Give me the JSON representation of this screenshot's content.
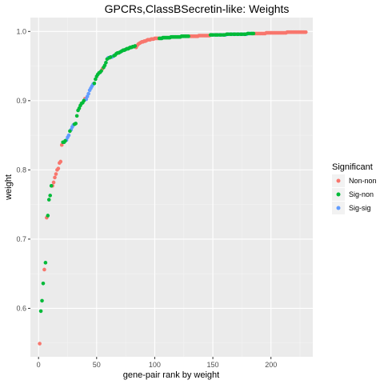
{
  "chart_data": {
    "type": "scatter",
    "title": "GPCRs,ClassBSecretin-like: Weights",
    "xlabel": "gene-pair rank by weight",
    "ylabel": "weight",
    "xlim": [
      -7,
      236
    ],
    "ylim": [
      0.53,
      1.02
    ],
    "x_ticks": [
      0,
      50,
      100,
      150,
      200
    ],
    "x_tick_labels": [
      "0",
      "50",
      "100",
      "150",
      "200"
    ],
    "y_ticks": [
      0.6,
      0.7,
      0.8,
      0.9,
      1.0
    ],
    "y_tick_labels": [
      "0.6",
      "0.7",
      "0.8",
      "0.9",
      "1.0"
    ],
    "grid": true,
    "legend": {
      "title": "Significant",
      "position": "right",
      "entries": [
        {
          "label": "Non-non",
          "color": "#F8766D"
        },
        {
          "label": "Sig-non",
          "color": "#00BA38"
        },
        {
          "label": "Sig-sig",
          "color": "#619CFF"
        }
      ]
    },
    "series": [
      {
        "name": "Non-non",
        "color": "#F8766D",
        "x": [
          1,
          5,
          7,
          12,
          13,
          14,
          15,
          16,
          17,
          18,
          19,
          20,
          40,
          55,
          84,
          85,
          86,
          87,
          88,
          89,
          90,
          91,
          92,
          93,
          94,
          95,
          96,
          97,
          98,
          99,
          100,
          101,
          102,
          103,
          130,
          131,
          132,
          133,
          134,
          135,
          136,
          137,
          138,
          139,
          140,
          141,
          142,
          143,
          144,
          145,
          146,
          147,
          186,
          187,
          188,
          189,
          190,
          191,
          192,
          193,
          194,
          195,
          196,
          197,
          198,
          199,
          200,
          201,
          202,
          203,
          204,
          205,
          206,
          207,
          208,
          209,
          210,
          211,
          212,
          213,
          214,
          215,
          216,
          217,
          218,
          219,
          220,
          221,
          222,
          223,
          224,
          225,
          226,
          227,
          228,
          229,
          230
        ],
        "y": [
          0.549,
          0.656,
          0.731,
          0.777,
          0.782,
          0.789,
          0.794,
          0.8,
          0.802,
          0.81,
          0.812,
          0.836,
          0.903,
          0.946,
          0.977,
          0.98,
          0.982,
          0.983,
          0.984,
          0.985,
          0.985,
          0.986,
          0.986,
          0.987,
          0.988,
          0.988,
          0.988,
          0.989,
          0.989,
          0.989,
          0.99,
          0.99,
          0.99,
          0.99,
          0.993,
          0.993,
          0.993,
          0.993,
          0.993,
          0.993,
          0.993,
          0.993,
          0.994,
          0.994,
          0.994,
          0.994,
          0.994,
          0.994,
          0.994,
          0.994,
          0.994,
          0.994,
          0.997,
          0.997,
          0.997,
          0.997,
          0.997,
          0.997,
          0.997,
          0.997,
          0.997,
          0.997,
          0.998,
          0.998,
          0.998,
          0.998,
          0.998,
          0.998,
          0.998,
          0.998,
          0.998,
          0.998,
          0.998,
          0.998,
          0.998,
          0.998,
          0.998,
          0.998,
          0.998,
          0.998,
          0.999,
          0.999,
          0.999,
          0.999,
          0.999,
          0.999,
          0.999,
          0.999,
          0.999,
          0.999,
          0.999,
          0.999,
          0.999,
          0.999,
          0.999,
          0.999,
          0.999
        ]
      },
      {
        "name": "Sig-non",
        "color": "#00BA38",
        "x": [
          2,
          3,
          4,
          6,
          8,
          9,
          10,
          11,
          21,
          22,
          23,
          27,
          31,
          32,
          33,
          34,
          35,
          36,
          37,
          38,
          39,
          48,
          49,
          50,
          51,
          52,
          53,
          54,
          56,
          57,
          58,
          59,
          61,
          62,
          65,
          66,
          67,
          68,
          69,
          70,
          71,
          72,
          73,
          74,
          75,
          76,
          77,
          78,
          79,
          80,
          81,
          82,
          83,
          104,
          105,
          106,
          107,
          108,
          109,
          110,
          111,
          112,
          113,
          114,
          115,
          116,
          117,
          118,
          119,
          120,
          121,
          122,
          123,
          124,
          125,
          126,
          127,
          128,
          129,
          148,
          149,
          150,
          152,
          153,
          154,
          156,
          157,
          159,
          160,
          162,
          163,
          165,
          166,
          168,
          169,
          171,
          172,
          174,
          175,
          177,
          178,
          180,
          181,
          183,
          184,
          185
        ],
        "y": [
          0.596,
          0.611,
          0.636,
          0.666,
          0.734,
          0.757,
          0.763,
          0.777,
          0.84,
          0.84,
          0.842,
          0.856,
          0.866,
          0.867,
          0.878,
          0.886,
          0.889,
          0.893,
          0.896,
          0.897,
          0.9,
          0.925,
          0.931,
          0.935,
          0.938,
          0.94,
          0.941,
          0.943,
          0.948,
          0.951,
          0.955,
          0.96,
          0.962,
          0.963,
          0.965,
          0.966,
          0.968,
          0.969,
          0.969,
          0.97,
          0.971,
          0.972,
          0.973,
          0.973,
          0.974,
          0.975,
          0.975,
          0.976,
          0.977,
          0.977,
          0.978,
          0.978,
          0.979,
          0.99,
          0.99,
          0.99,
          0.991,
          0.991,
          0.991,
          0.991,
          0.991,
          0.991,
          0.991,
          0.992,
          0.992,
          0.992,
          0.992,
          0.992,
          0.992,
          0.992,
          0.992,
          0.992,
          0.993,
          0.993,
          0.993,
          0.993,
          0.993,
          0.993,
          0.993,
          0.995,
          0.995,
          0.995,
          0.995,
          0.995,
          0.995,
          0.995,
          0.995,
          0.995,
          0.995,
          0.996,
          0.996,
          0.996,
          0.996,
          0.996,
          0.996,
          0.996,
          0.996,
          0.996,
          0.996,
          0.996,
          0.996,
          0.997,
          0.997,
          0.997,
          0.997,
          0.997
        ]
      },
      {
        "name": "Sig-sig",
        "color": "#619CFF",
        "x": [
          24,
          25,
          26,
          28,
          29,
          30,
          41,
          42,
          43,
          44,
          45,
          46,
          47,
          60,
          63,
          64,
          151,
          155,
          158,
          161,
          164,
          167,
          170,
          173,
          176,
          179,
          182
        ],
        "y": [
          0.843,
          0.847,
          0.85,
          0.858,
          0.862,
          0.865,
          0.902,
          0.906,
          0.91,
          0.915,
          0.918,
          0.921,
          0.924,
          0.962,
          0.963,
          0.964,
          0.995,
          0.995,
          0.995,
          0.995,
          0.996,
          0.996,
          0.996,
          0.996,
          0.996,
          0.996,
          0.997
        ]
      }
    ]
  }
}
